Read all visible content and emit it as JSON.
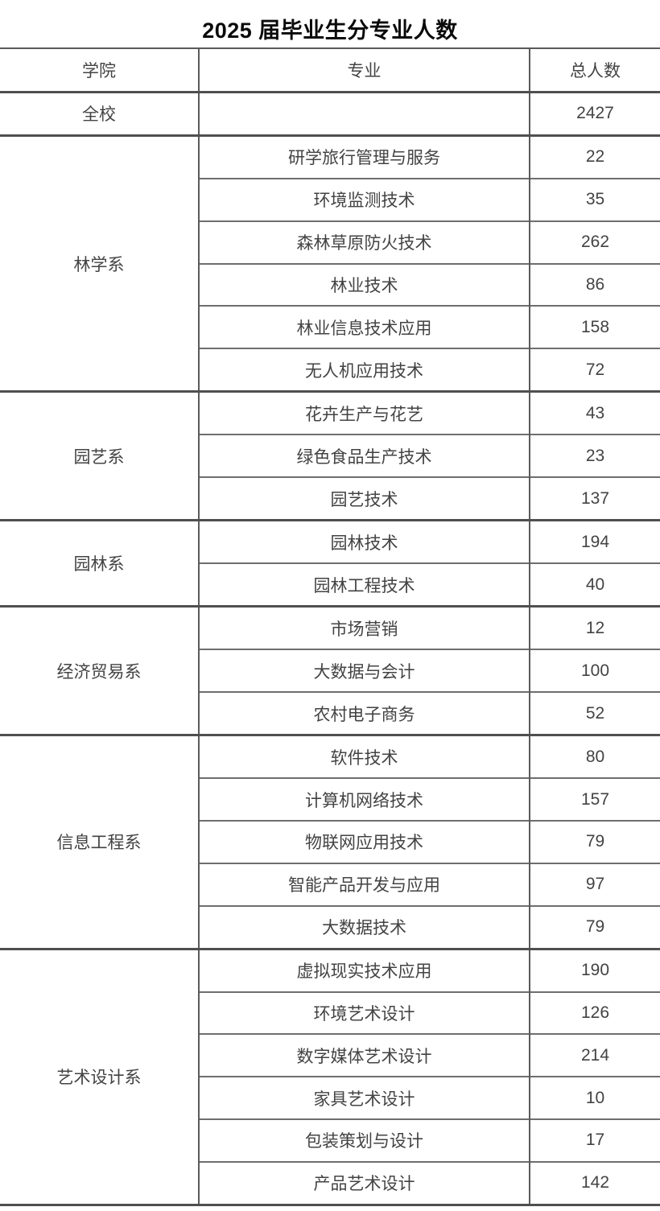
{
  "title": "2025 届毕业生分专业人数",
  "table": {
    "headers": {
      "college": "学院",
      "major": "专业",
      "total": "总人数"
    },
    "overall": {
      "college": "全校",
      "major": "",
      "total": "2427"
    },
    "departments": [
      {
        "name": "林学系",
        "majors": [
          {
            "major": "研学旅行管理与服务",
            "total": "22"
          },
          {
            "major": "环境监测技术",
            "total": "35"
          },
          {
            "major": "森林草原防火技术",
            "total": "262"
          },
          {
            "major": "林业技术",
            "total": "86"
          },
          {
            "major": "林业信息技术应用",
            "total": "158"
          },
          {
            "major": "无人机应用技术",
            "total": "72"
          }
        ]
      },
      {
        "name": "园艺系",
        "majors": [
          {
            "major": "花卉生产与花艺",
            "total": "43"
          },
          {
            "major": "绿色食品生产技术",
            "total": "23"
          },
          {
            "major": "园艺技术",
            "total": "137"
          }
        ]
      },
      {
        "name": "园林系",
        "majors": [
          {
            "major": "园林技术",
            "total": "194"
          },
          {
            "major": "园林工程技术",
            "total": "40"
          }
        ]
      },
      {
        "name": "经济贸易系",
        "majors": [
          {
            "major": "市场营销",
            "total": "12"
          },
          {
            "major": "大数据与会计",
            "total": "100"
          },
          {
            "major": "农村电子商务",
            "total": "52"
          }
        ]
      },
      {
        "name": "信息工程系",
        "majors": [
          {
            "major": "软件技术",
            "total": "80"
          },
          {
            "major": "计算机网络技术",
            "total": "157"
          },
          {
            "major": "物联网应用技术",
            "total": "79"
          },
          {
            "major": "智能产品开发与应用",
            "total": "97"
          },
          {
            "major": "大数据技术",
            "total": "79"
          }
        ]
      },
      {
        "name": "艺术设计系",
        "majors": [
          {
            "major": "虚拟现实技术应用",
            "total": "190"
          },
          {
            "major": "环境艺术设计",
            "total": "126"
          },
          {
            "major": "数字媒体艺术设计",
            "total": "214"
          },
          {
            "major": "家具艺术设计",
            "total": "10"
          },
          {
            "major": "包装策划与设计",
            "total": "17"
          },
          {
            "major": "产品艺术设计",
            "total": "142"
          }
        ]
      }
    ]
  },
  "colors": {
    "text": "#434343",
    "title": "#0a0a0a",
    "border": "#5a5a5a",
    "border_strong": "#4f4f4f",
    "border_light": "#6e6e6e",
    "background": "#ffffff"
  }
}
